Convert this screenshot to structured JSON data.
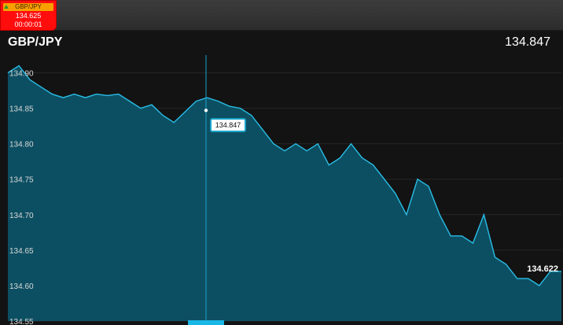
{
  "ticker": {
    "symbol": "GBP/JPY",
    "price": "134.625",
    "time": "00:00:01",
    "trend_icon": "up-arrow-icon",
    "bg_color": "#ff0d0d",
    "head_color": "#f8a000"
  },
  "header": {
    "title": "GBP/JPY",
    "current_price": "134.847"
  },
  "cursor_label": "134.847",
  "last_label": "134.622",
  "colors": {
    "line": "#29bde6",
    "fill": "#0d4f62",
    "cursor": "#1aa3c8"
  },
  "chart_data": {
    "type": "area",
    "yticks": [
      "134.90",
      "134.85",
      "134.80",
      "134.75",
      "134.70",
      "134.65",
      "134.60",
      "134.55"
    ],
    "ylim": [
      134.55,
      134.92
    ],
    "x": [
      0,
      0.4,
      0.8,
      1.2,
      1.6,
      2.0,
      2.4,
      2.8,
      3.2,
      3.6,
      4.0,
      4.4,
      4.8,
      5.2,
      5.6,
      6.0,
      6.4,
      6.8,
      7.2,
      7.6,
      8.0,
      8.4,
      8.8,
      9.2,
      9.6,
      10.0,
      10.4,
      10.8,
      11.2,
      11.6,
      12.0,
      12.4,
      12.8,
      13.2,
      13.6,
      14.0,
      14.4,
      14.8,
      15.2,
      15.6,
      16.0,
      16.4,
      16.8,
      17.2,
      17.6,
      18.0,
      18.4,
      18.8,
      19.2,
      19.6,
      20.0
    ],
    "values": [
      134.9,
      134.91,
      134.89,
      134.88,
      134.87,
      134.865,
      134.87,
      134.865,
      134.87,
      134.868,
      134.87,
      134.86,
      134.85,
      134.855,
      134.84,
      134.83,
      134.845,
      134.86,
      134.865,
      134.86,
      134.853,
      134.85,
      134.84,
      134.82,
      134.8,
      134.79,
      134.8,
      134.79,
      134.8,
      134.77,
      134.78,
      134.8,
      134.78,
      134.77,
      134.75,
      134.73,
      134.7,
      134.75,
      134.74,
      134.7,
      134.67,
      134.67,
      134.66,
      134.7,
      134.64,
      134.63,
      134.61,
      134.61,
      134.6,
      134.62,
      134.62
    ],
    "grid": true,
    "legend": "none"
  }
}
